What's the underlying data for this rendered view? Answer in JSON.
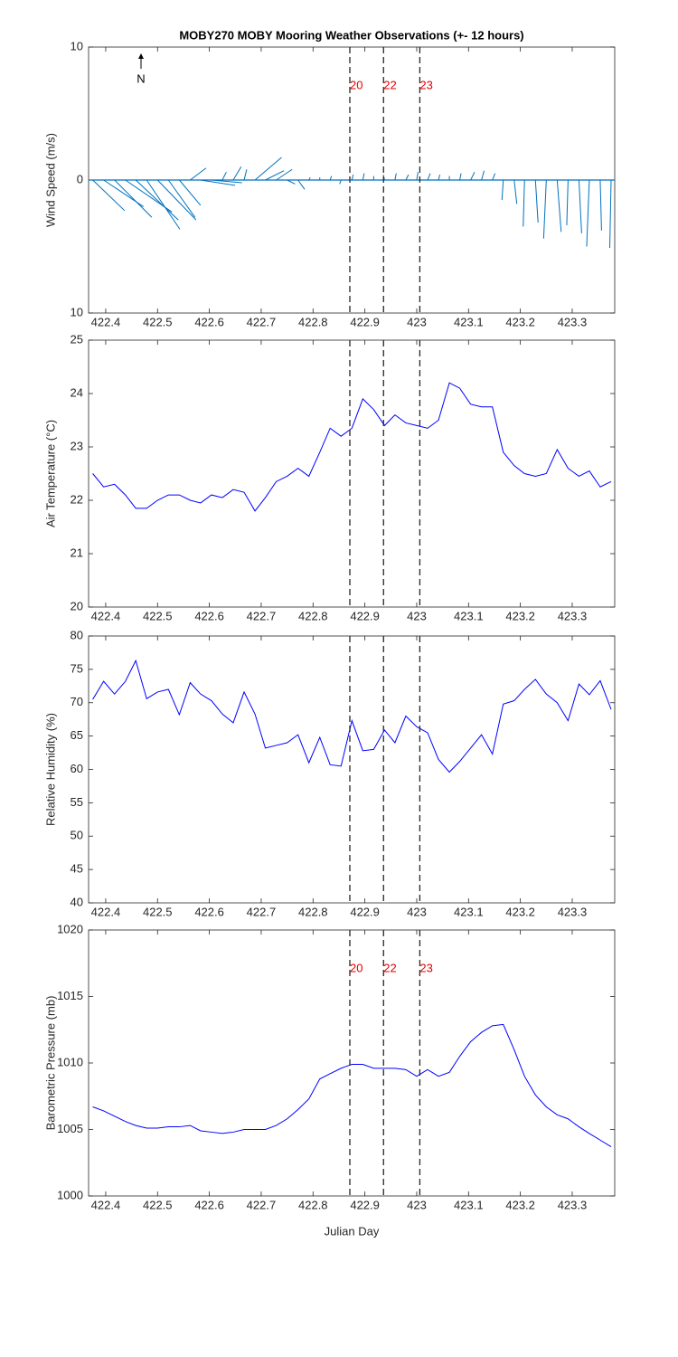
{
  "chart_data": [
    {
      "type": "stick",
      "title": "MOBY270 MOBY Mooring Weather Observations (+- 12 hours)",
      "ylabel": "Wind Speed (m/s)",
      "annotation": "N",
      "color": "#0072bd",
      "xlim": [
        422.367,
        423.382
      ],
      "xticks": [
        422.4,
        422.5,
        422.6,
        422.7,
        422.8,
        422.9,
        423,
        423.1,
        423.2,
        423.3
      ],
      "ylim": [
        -10,
        10
      ],
      "yticks": [
        {
          "value": -10,
          "label": "10"
        },
        0,
        10
      ],
      "vlines": [
        {
          "x": 422.871,
          "label": "20"
        },
        {
          "x": 422.936,
          "label": "22"
        },
        {
          "x": 423.006,
          "label": "23"
        }
      ],
      "x": [
        422.375,
        422.396,
        422.417,
        422.438,
        422.458,
        422.479,
        422.5,
        422.521,
        422.542,
        422.563,
        422.583,
        422.604,
        422.625,
        422.646,
        422.667,
        422.688,
        422.708,
        422.729,
        422.75,
        422.771,
        422.792,
        422.813,
        422.833,
        422.854,
        422.875,
        422.896,
        422.917,
        422.938,
        422.958,
        422.979,
        423.0,
        423.021,
        423.042,
        423.063,
        423.083,
        423.104,
        423.125,
        423.146,
        423.167,
        423.188,
        423.208,
        423.229,
        423.25,
        423.271,
        423.292,
        423.313,
        423.333,
        423.354,
        423.375
      ],
      "u": [
        2.4,
        3.0,
        2.8,
        3.5,
        3.2,
        2.5,
        2.9,
        2.0,
        1.6,
        1.2,
        2.6,
        2.3,
        0.3,
        0.6,
        0.2,
        2.0,
        1.4,
        1.2,
        0.6,
        0.5,
        0.1,
        0.0,
        0.1,
        -0.1,
        0.1,
        0.1,
        0.0,
        -0.1,
        0.1,
        0.2,
        0.1,
        0.2,
        0.1,
        0.0,
        0.1,
        0.3,
        0.2,
        0.2,
        -0.1,
        0.2,
        -0.1,
        0.2,
        -0.2,
        0.3,
        -0.1,
        0.2,
        -0.2,
        0.1,
        -0.1
      ],
      "v": [
        -2.3,
        -2.0,
        -2.8,
        -2.4,
        -3.0,
        -3.7,
        -3.0,
        -2.8,
        -1.9,
        0.9,
        -0.4,
        -0.2,
        0.6,
        1.0,
        0.8,
        1.7,
        0.7,
        0.8,
        -0.3,
        -0.7,
        0.2,
        0.2,
        0.3,
        -0.3,
        0.4,
        0.5,
        0.3,
        0.4,
        0.5,
        0.4,
        0.6,
        0.5,
        0.4,
        0.3,
        0.5,
        0.6,
        0.7,
        0.5,
        -1.5,
        -1.8,
        -3.5,
        -3.2,
        -4.4,
        -3.9,
        -3.4,
        -4.0,
        -5.0,
        -3.8,
        -5.1
      ]
    },
    {
      "type": "line",
      "ylabel": "Air Temperature (°C)",
      "color": "#0000ff",
      "xlim": [
        422.367,
        423.382
      ],
      "xticks": [
        422.4,
        422.5,
        422.6,
        422.7,
        422.8,
        422.9,
        423,
        423.1,
        423.2,
        423.3
      ],
      "ylim": [
        20,
        25
      ],
      "yticks": [
        20,
        21,
        22,
        23,
        24,
        25
      ],
      "vlines": [
        {
          "x": 422.871
        },
        {
          "x": 422.936
        },
        {
          "x": 423.006
        }
      ],
      "x": [
        422.375,
        422.396,
        422.417,
        422.438,
        422.458,
        422.479,
        422.5,
        422.521,
        422.542,
        422.563,
        422.583,
        422.604,
        422.625,
        422.646,
        422.667,
        422.688,
        422.708,
        422.729,
        422.75,
        422.771,
        422.792,
        422.813,
        422.833,
        422.854,
        422.875,
        422.896,
        422.917,
        422.938,
        422.958,
        422.979,
        423.0,
        423.021,
        423.042,
        423.063,
        423.083,
        423.104,
        423.125,
        423.146,
        423.167,
        423.188,
        423.208,
        423.229,
        423.25,
        423.271,
        423.292,
        423.313,
        423.333,
        423.354,
        423.375
      ],
      "values": [
        22.5,
        22.25,
        22.3,
        22.1,
        21.85,
        21.85,
        22.0,
        22.1,
        22.1,
        22.0,
        21.95,
        22.1,
        22.05,
        22.2,
        22.15,
        21.8,
        22.05,
        22.35,
        22.45,
        22.6,
        22.45,
        22.9,
        23.35,
        23.2,
        23.35,
        23.9,
        23.7,
        23.4,
        23.6,
        23.45,
        23.4,
        23.35,
        23.5,
        24.2,
        24.1,
        23.8,
        23.75,
        23.75,
        22.9,
        22.65,
        22.5,
        22.45,
        22.5,
        22.95,
        22.6,
        22.45,
        22.55,
        22.25,
        22.35
      ]
    },
    {
      "type": "line",
      "ylabel": "Relative Humidity (%)",
      "color": "#0000ff",
      "xlim": [
        422.367,
        423.382
      ],
      "xticks": [
        422.4,
        422.5,
        422.6,
        422.7,
        422.8,
        422.9,
        423,
        423.1,
        423.2,
        423.3
      ],
      "ylim": [
        40,
        80
      ],
      "yticks": [
        40,
        45,
        50,
        55,
        60,
        65,
        70,
        75,
        80
      ],
      "vlines": [
        {
          "x": 422.871
        },
        {
          "x": 422.936
        },
        {
          "x": 423.006
        }
      ],
      "x": [
        422.375,
        422.396,
        422.417,
        422.438,
        422.458,
        422.479,
        422.5,
        422.521,
        422.542,
        422.563,
        422.583,
        422.604,
        422.625,
        422.646,
        422.667,
        422.688,
        422.708,
        422.729,
        422.75,
        422.771,
        422.792,
        422.813,
        422.833,
        422.854,
        422.875,
        422.896,
        422.917,
        422.938,
        422.958,
        422.979,
        423.0,
        423.021,
        423.042,
        423.063,
        423.083,
        423.104,
        423.125,
        423.146,
        423.167,
        423.188,
        423.208,
        423.229,
        423.25,
        423.271,
        423.292,
        423.313,
        423.333,
        423.354,
        423.375
      ],
      "values": [
        70.5,
        73.2,
        71.3,
        73.2,
        76.3,
        70.6,
        71.6,
        72.0,
        68.2,
        73.0,
        71.3,
        70.3,
        68.3,
        67.0,
        71.6,
        68.3,
        63.2,
        63.6,
        64.0,
        65.2,
        61.0,
        64.8,
        60.7,
        60.5,
        67.3,
        62.8,
        63.0,
        65.9,
        64.0,
        68.0,
        66.4,
        65.5,
        61.5,
        59.6,
        61.2,
        63.2,
        65.2,
        62.3,
        69.8,
        70.3,
        72.0,
        73.5,
        71.3,
        70.0,
        67.3,
        72.8,
        71.2,
        73.3,
        69.0
      ]
    },
    {
      "type": "line",
      "ylabel": "Barometric Pressure (mb)",
      "xlabel": "Julian Day",
      "color": "#0000ff",
      "xlim": [
        422.367,
        423.382
      ],
      "xticks": [
        422.4,
        422.5,
        422.6,
        422.7,
        422.8,
        422.9,
        423,
        423.1,
        423.2,
        423.3
      ],
      "ylim": [
        1000,
        1020
      ],
      "yticks": [
        1000,
        1005,
        1010,
        1015,
        1020
      ],
      "vlines": [
        {
          "x": 422.871,
          "label": "20"
        },
        {
          "x": 422.936,
          "label": "22"
        },
        {
          "x": 423.006,
          "label": "23"
        }
      ],
      "x": [
        422.375,
        422.396,
        422.417,
        422.438,
        422.458,
        422.479,
        422.5,
        422.521,
        422.542,
        422.563,
        422.583,
        422.604,
        422.625,
        422.646,
        422.667,
        422.688,
        422.708,
        422.729,
        422.75,
        422.771,
        422.792,
        422.813,
        422.833,
        422.854,
        422.875,
        422.896,
        422.917,
        422.938,
        422.958,
        422.979,
        423.0,
        423.021,
        423.042,
        423.063,
        423.083,
        423.104,
        423.125,
        423.146,
        423.167,
        423.188,
        423.208,
        423.229,
        423.25,
        423.271,
        423.292,
        423.313,
        423.333,
        423.354,
        423.375
      ],
      "values": [
        1006.7,
        1006.4,
        1006.0,
        1005.6,
        1005.3,
        1005.1,
        1005.1,
        1005.2,
        1005.2,
        1005.3,
        1004.9,
        1004.8,
        1004.7,
        1004.8,
        1005.0,
        1005.0,
        1005.0,
        1005.3,
        1005.8,
        1006.5,
        1007.3,
        1008.8,
        1009.2,
        1009.6,
        1009.9,
        1009.9,
        1009.6,
        1009.6,
        1009.6,
        1009.5,
        1009.0,
        1009.5,
        1009.0,
        1009.3,
        1010.5,
        1011.6,
        1012.3,
        1012.8,
        1012.9,
        1011.0,
        1009.0,
        1007.6,
        1006.7,
        1006.1,
        1005.8,
        1005.2,
        1004.7,
        1004.2,
        1003.7
      ]
    }
  ]
}
